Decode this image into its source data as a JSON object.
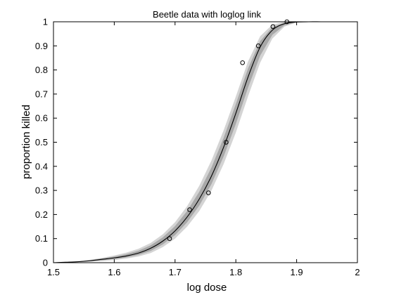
{
  "chart_data": {
    "type": "line",
    "title": "Beetle data with loglog link",
    "xlabel": "log dose",
    "ylabel": "proportion killed",
    "xlim": [
      1.5,
      2.0
    ],
    "ylim": [
      0,
      1
    ],
    "grid": false,
    "xticks": [
      1.5,
      1.6,
      1.7,
      1.8,
      1.9,
      2.0
    ],
    "xtick_labels": [
      "1.5",
      "1.6",
      "1.7",
      "1.8",
      "1.9",
      "2"
    ],
    "yticks": [
      0,
      0.1,
      0.2,
      0.3,
      0.4,
      0.5,
      0.6,
      0.7,
      0.8,
      0.9,
      1.0
    ],
    "ytick_labels": [
      "0",
      "0.1",
      "0.2",
      "0.3",
      "0.4",
      "0.5",
      "0.6",
      "0.7",
      "0.8",
      "0.9",
      "1"
    ],
    "observed_points": {
      "x": [
        1.691,
        1.724,
        1.755,
        1.784,
        1.811,
        1.837,
        1.861,
        1.884
      ],
      "y": [
        0.1,
        0.22,
        0.29,
        0.5,
        0.83,
        0.9,
        0.98,
        1.0
      ]
    },
    "fitted_curve": {
      "x": [
        1.5,
        1.52,
        1.54,
        1.56,
        1.58,
        1.6,
        1.62,
        1.64,
        1.66,
        1.68,
        1.7,
        1.72,
        1.74,
        1.76,
        1.78,
        1.8,
        1.82,
        1.84,
        1.86,
        1.88,
        1.9,
        1.92,
        1.94,
        1.96,
        1.98,
        2.0
      ],
      "y": [
        0.0,
        0.002,
        0.004,
        0.008,
        0.014,
        0.02,
        0.028,
        0.04,
        0.06,
        0.09,
        0.132,
        0.19,
        0.265,
        0.36,
        0.48,
        0.62,
        0.77,
        0.895,
        0.965,
        0.992,
        0.999,
        1.0,
        1.0,
        1.0,
        1.0,
        1.0
      ]
    },
    "uncertainty_band": {
      "x": [
        1.5,
        1.52,
        1.54,
        1.56,
        1.58,
        1.6,
        1.62,
        1.64,
        1.66,
        1.68,
        1.7,
        1.72,
        1.74,
        1.76,
        1.78,
        1.8,
        1.82,
        1.84,
        1.86,
        1.88,
        1.9,
        1.92,
        1.94,
        1.96,
        1.98,
        2.0
      ],
      "lower": [
        0.0,
        0.001,
        0.002,
        0.004,
        0.007,
        0.011,
        0.017,
        0.026,
        0.04,
        0.065,
        0.1,
        0.15,
        0.215,
        0.3,
        0.41,
        0.54,
        0.69,
        0.83,
        0.93,
        0.98,
        0.997,
        1.0,
        1.0,
        1.0,
        1.0,
        1.0
      ],
      "upper": [
        0.001,
        0.003,
        0.006,
        0.012,
        0.02,
        0.03,
        0.042,
        0.058,
        0.082,
        0.118,
        0.168,
        0.235,
        0.32,
        0.425,
        0.55,
        0.69,
        0.835,
        0.94,
        0.988,
        0.999,
        1.0,
        1.0,
        1.0,
        1.0,
        1.0,
        1.0
      ]
    },
    "colors": {
      "curve": "#000000",
      "band_dark": "#9a9a9a",
      "band_light": "#d4d4d4",
      "markers": "#000000",
      "axes": "#000000"
    }
  }
}
